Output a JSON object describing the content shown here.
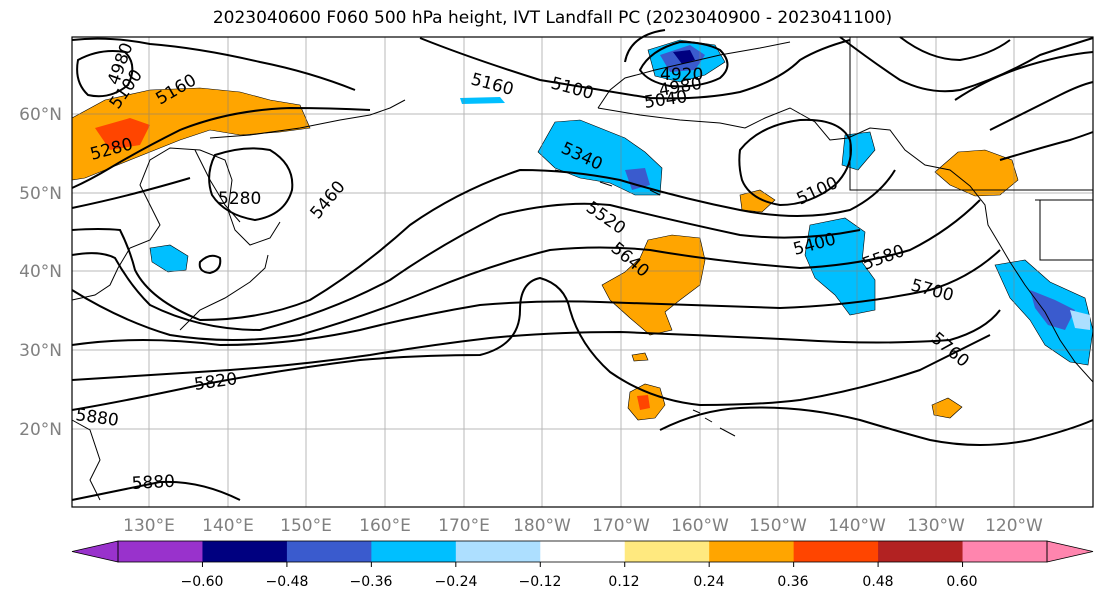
{
  "title": "2023040600 F060 500 hPa height, IVT Landfall PC (2023040900 - 2023041100)",
  "lat_labels": [
    "60°N",
    "50°N",
    "40°N",
    "30°N",
    "20°N"
  ],
  "lon_labels": [
    "130°E",
    "140°E",
    "150°E",
    "160°E",
    "170°E",
    "180°W",
    "170°W",
    "160°W",
    "150°W",
    "140°W",
    "130°W",
    "120°W"
  ],
  "contour_labels": [
    "4980",
    "5100",
    "5160",
    "5280",
    "5280",
    "5160",
    "5100",
    "4920",
    "4980",
    "5040",
    "5340",
    "5460",
    "5520",
    "5640",
    "5100",
    "5400",
    "5580",
    "5700",
    "5760",
    "5820",
    "5880",
    "5880"
  ],
  "colorbar": {
    "tick_labels": [
      "−0.60",
      "−0.48",
      "−0.36",
      "−0.24",
      "−0.12",
      "0.12",
      "0.24",
      "0.36",
      "0.48",
      "0.60"
    ],
    "colors": [
      "#9932CC",
      "#000080",
      "#3A5BCE",
      "#00BFFF",
      "#ADDFFF",
      "#FFFFFF",
      "#FFE97F",
      "#FFA500",
      "#FF4500",
      "#B22222",
      "#FF85AE"
    ]
  },
  "colors": {
    "frame": "#000000",
    "gridline": "#808080",
    "tick_label": "#808080",
    "contour": "#000000"
  }
}
